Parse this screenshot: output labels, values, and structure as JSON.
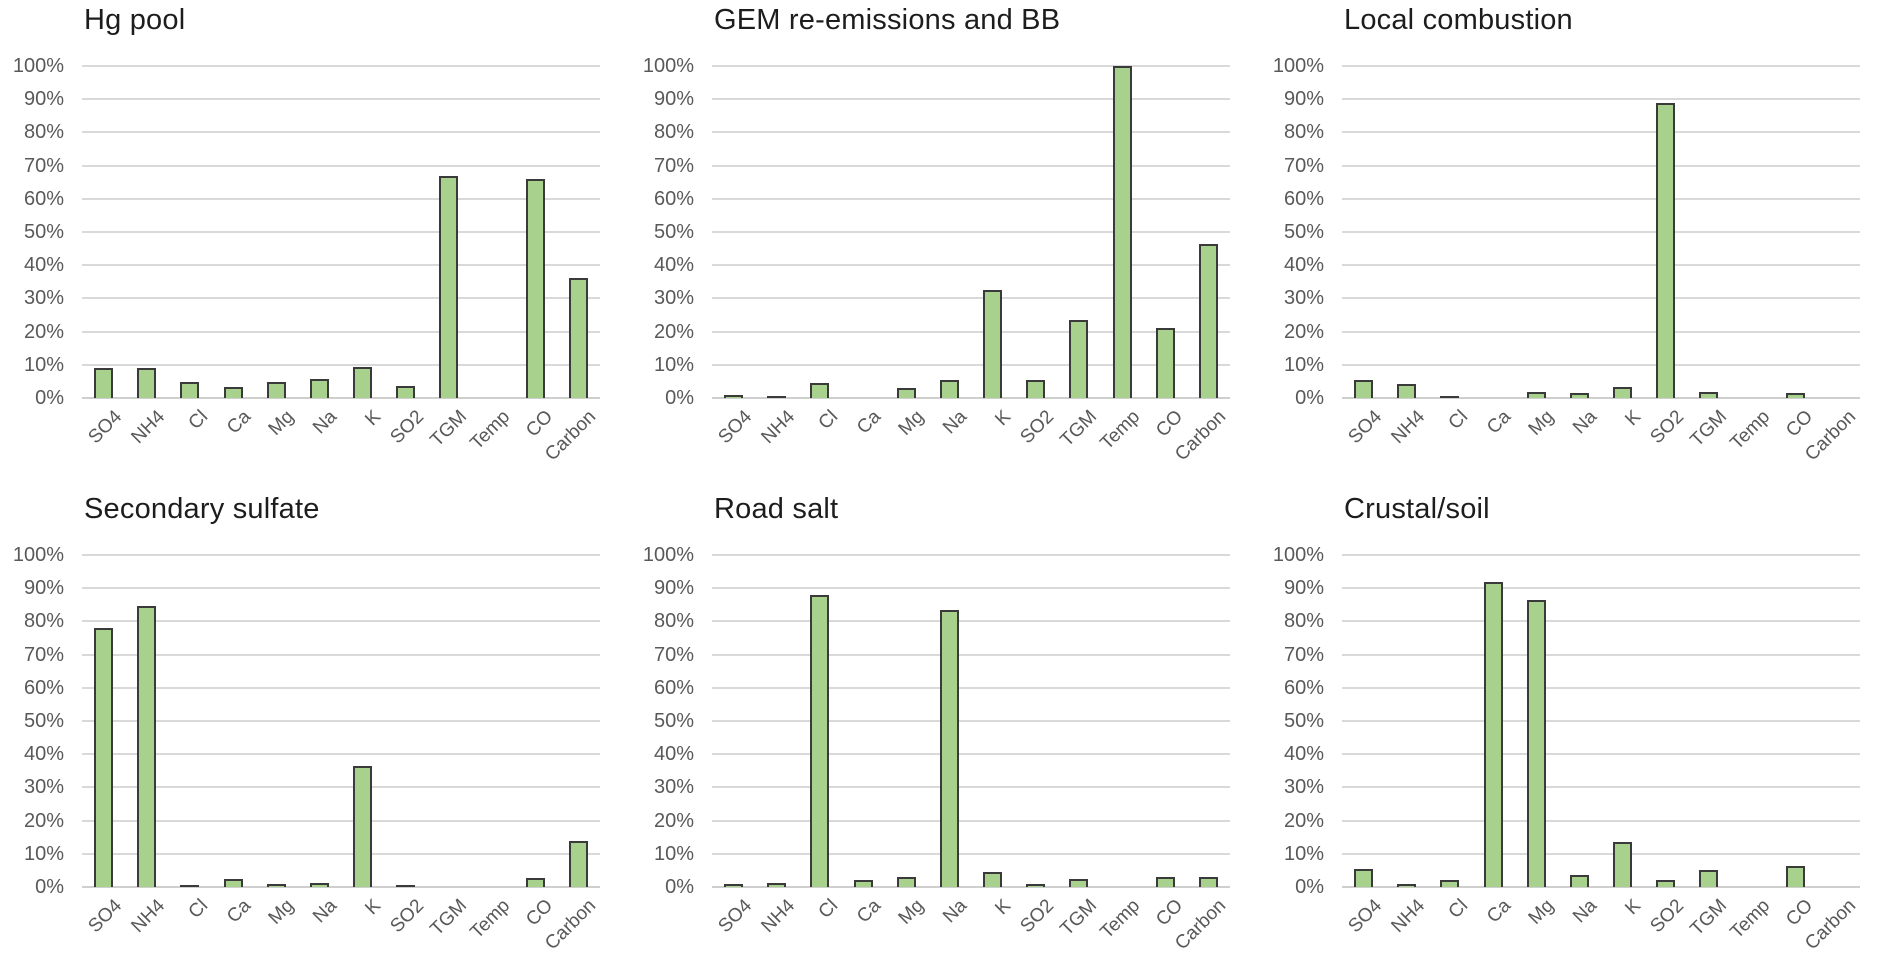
{
  "chart_data": {
    "type": "bar",
    "layout": "2 rows x 3 columns of small multiples, no legend, gridlines on",
    "categories": [
      "SO4",
      "NH4",
      "Cl",
      "Ca",
      "Mg",
      "Na",
      "K",
      "SO2",
      "TGM",
      "Temp",
      "CO",
      "Carbon"
    ],
    "ylim": [
      0,
      100
    ],
    "ytick_labels": [
      "100%",
      "90%",
      "80%",
      "70%",
      "60%",
      "50%",
      "40%",
      "30%",
      "20%",
      "10%",
      "0%"
    ],
    "series": [
      {
        "name": "Hg pool",
        "values": [
          9,
          9,
          4.7,
          3.2,
          4.7,
          5.8,
          9.3,
          3.5,
          67,
          0,
          66,
          36
        ]
      },
      {
        "name": "GEM re-emissions and BB",
        "values": [
          0.8,
          0.5,
          4.5,
          0,
          3,
          5.3,
          32.5,
          5.3,
          23.5,
          100,
          21,
          46.5
        ]
      },
      {
        "name": "Local combustion",
        "values": [
          5.5,
          4.3,
          0.5,
          0,
          1.7,
          1.4,
          3.3,
          89,
          1.7,
          0,
          1.4,
          0
        ]
      },
      {
        "name": "Secondary sulfate",
        "values": [
          78,
          84.5,
          0.6,
          2.5,
          1,
          1.3,
          36.5,
          0.6,
          0,
          0,
          2.8,
          14
        ]
      },
      {
        "name": "Road salt",
        "values": [
          0.8,
          1.2,
          88,
          2,
          3,
          83.5,
          4.5,
          0.8,
          2.4,
          0,
          3,
          3
        ]
      },
      {
        "name": "Crustal/soil",
        "values": [
          5.3,
          1,
          2.2,
          92,
          86.5,
          3.7,
          13.5,
          2,
          5,
          0,
          6.2,
          0
        ]
      }
    ]
  },
  "colors": {
    "bar_fill": "#a9d18e",
    "bar_border": "#3a3a3a",
    "gridline": "#d9d9d9",
    "axis_line": "#cfcfcf",
    "tick_label": "#595959",
    "title": "#1d1d1d",
    "background": "#ffffff"
  }
}
